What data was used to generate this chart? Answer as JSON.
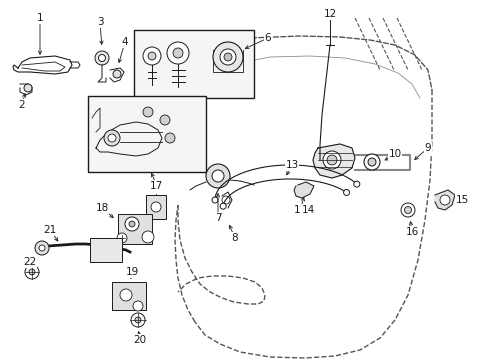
{
  "figsize": [
    4.89,
    3.6
  ],
  "dpi": 100,
  "background_color": "#ffffff",
  "line_color": "#1a1a1a",
  "dashed_color": "#555555"
}
